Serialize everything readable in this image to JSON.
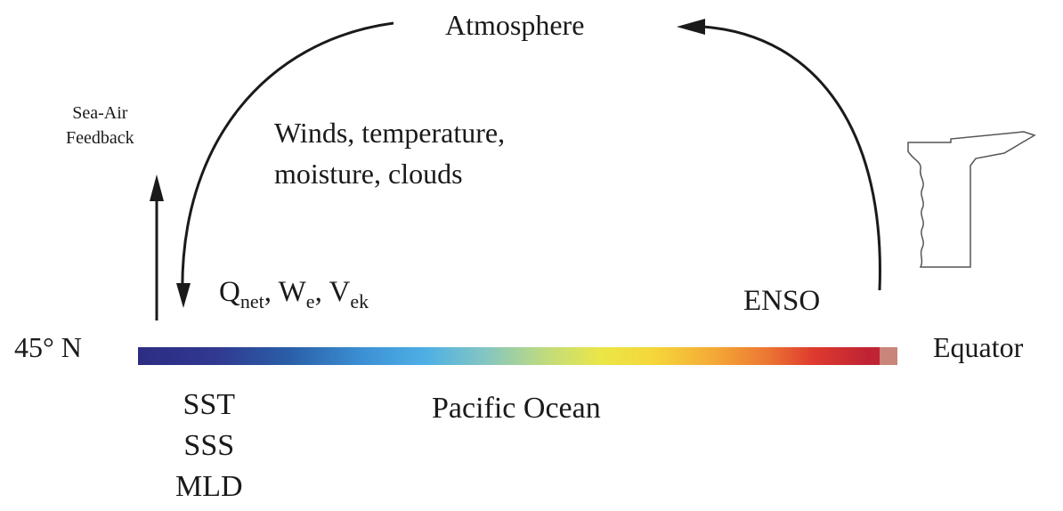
{
  "atmosphere": "Atmosphere",
  "atm_vars": [
    "Winds, temperature,",
    "moisture, clouds"
  ],
  "feedback": [
    "Sea-Air",
    "Feedback"
  ],
  "fluxes": {
    "q": "Q",
    "q_sub": "net",
    "sep1": ", W",
    "w_sub": "e",
    "sep2": ", V",
    "v_sub": "ek"
  },
  "enso": "ENSO",
  "lat": "45° N",
  "equator": "Equator",
  "ocean": "Pacific Ocean",
  "ocean_vars": [
    "SST",
    "SSS",
    "MLD"
  ],
  "colors": {
    "ink": "#1a1a1a",
    "bar_start": "#2d2c83",
    "bar_end": "#c02434"
  }
}
